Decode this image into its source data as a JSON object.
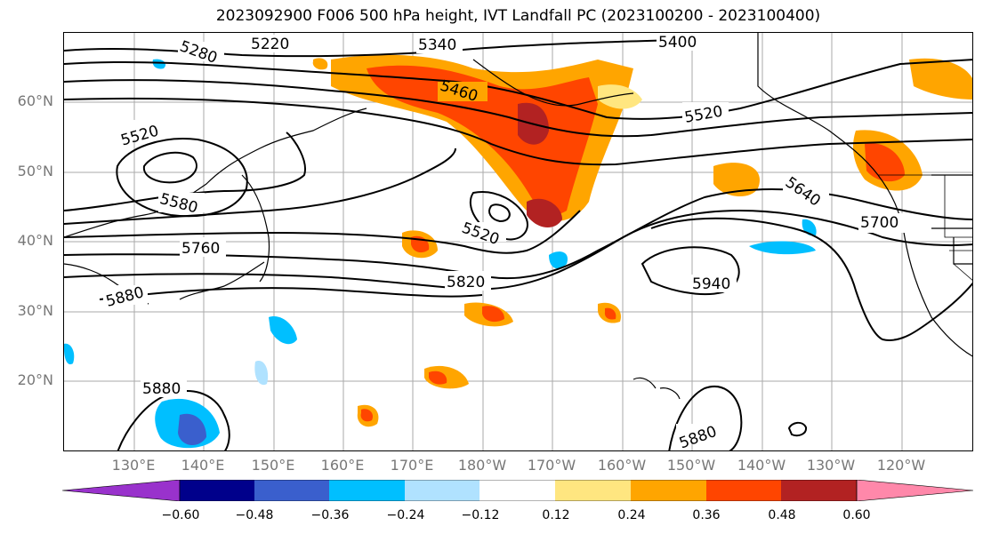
{
  "title": "2023092900 F006 500 hPa height, IVT Landfall PC (2023100200 - 2023100400)",
  "lat_labels": [
    "60°N",
    "50°N",
    "40°N",
    "30°N",
    "20°N"
  ],
  "lon_labels": [
    "130°E",
    "140°E",
    "150°E",
    "160°E",
    "170°E",
    "180°W",
    "170°W",
    "160°W",
    "150°W",
    "140°W",
    "130°W",
    "120°W"
  ],
  "contour_labels": [
    "5280",
    "5220",
    "5340",
    "5400",
    "5460",
    "5520",
    "5520",
    "5520",
    "5580",
    "5640",
    "5700",
    "5760",
    "5820",
    "5880",
    "5880",
    "5880",
    "5940"
  ],
  "colorbar": {
    "ticks": [
      "−0.60",
      "−0.48",
      "−0.36",
      "−0.24",
      "−0.12",
      "0.12",
      "0.24",
      "0.36",
      "0.48",
      "0.60"
    ],
    "colors": [
      "#9932cc",
      "#00008b",
      "#3a5fcd",
      "#00bfff",
      "#b0e2ff",
      "#ffffff",
      "#ffe680",
      "#ffa500",
      "#ff4500",
      "#b22222",
      "#ff88aa"
    ]
  }
}
